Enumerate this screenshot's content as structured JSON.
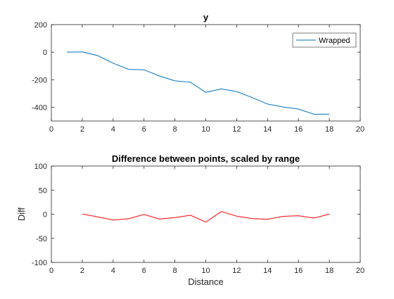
{
  "chart_data": [
    {
      "type": "line",
      "title": "y",
      "xlabel": "",
      "ylabel": "",
      "xlim": [
        0,
        20
      ],
      "ylim": [
        -500,
        200
      ],
      "xticks": [
        0,
        2,
        4,
        6,
        8,
        10,
        12,
        14,
        16,
        18,
        20
      ],
      "yticks": [
        -400,
        -200,
        0,
        200
      ],
      "grid": false,
      "legend_position": "top-right",
      "series": [
        {
          "name": "Wrapped",
          "color": "#0072BD",
          "x": [
            1,
            2,
            3,
            4,
            5,
            6,
            7,
            8,
            9,
            10,
            11,
            12,
            13,
            14,
            15,
            16,
            17,
            18
          ],
          "y": [
            0,
            2,
            -25,
            -80,
            -125,
            -128,
            -173,
            -208,
            -218,
            -292,
            -267,
            -286,
            -330,
            -377,
            -398,
            -413,
            -451,
            -450
          ]
        }
      ]
    },
    {
      "type": "line",
      "title": "Difference between points, scaled by range",
      "xlabel": "Distance",
      "ylabel": "Diff",
      "xlim": [
        0,
        20
      ],
      "ylim": [
        -100,
        100
      ],
      "xticks": [
        0,
        2,
        4,
        6,
        8,
        10,
        12,
        14,
        16,
        18,
        20
      ],
      "yticks": [
        -100,
        -50,
        0,
        50,
        100
      ],
      "grid": false,
      "series": [
        {
          "color": "#FF0000",
          "x": [
            2,
            3,
            4,
            5,
            6,
            7,
            8,
            9,
            10,
            11,
            12,
            13,
            14,
            15,
            16,
            17,
            18
          ],
          "y": [
            0.4,
            -5.5,
            -12,
            -9.4,
            -0.5,
            -10,
            -7,
            -2,
            -16.4,
            5.5,
            -4,
            -9,
            -10.4,
            -4.4,
            -3,
            -8,
            0.1
          ]
        }
      ]
    }
  ]
}
